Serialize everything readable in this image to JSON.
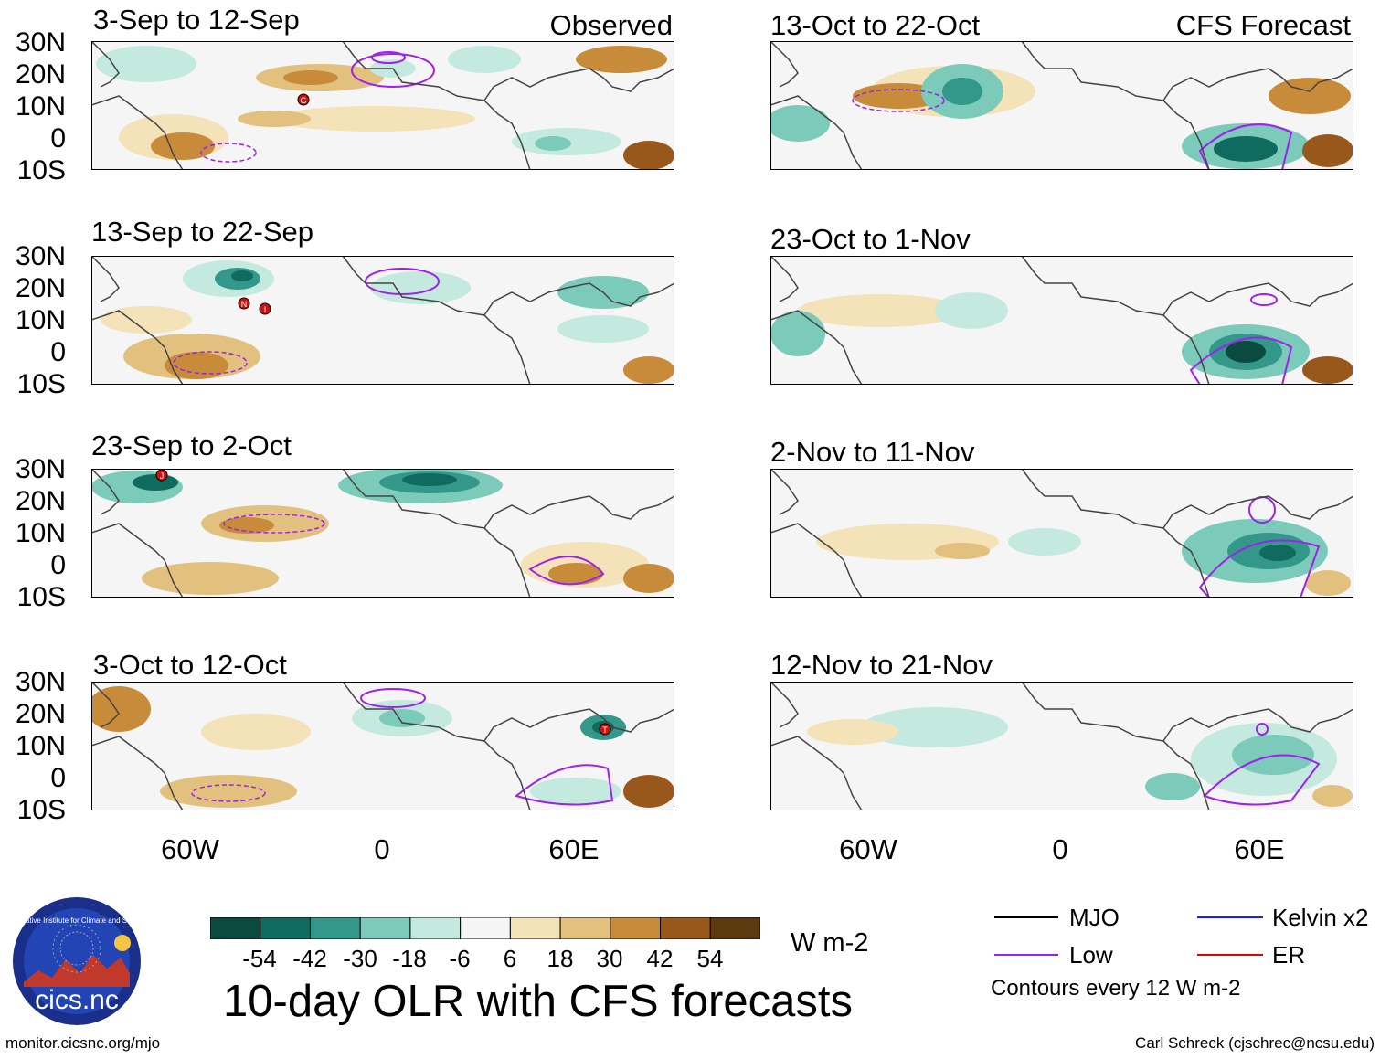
{
  "panels": [
    {
      "title": "3-Sep to 12-Sep",
      "subtitle": "Observed"
    },
    {
      "title": "13-Sep to 22-Sep",
      "subtitle": ""
    },
    {
      "title": "23-Sep to 2-Oct",
      "subtitle": ""
    },
    {
      "title": "3-Oct to 12-Oct",
      "subtitle": ""
    },
    {
      "title": "13-Oct to 22-Oct",
      "subtitle": "CFS Forecast"
    },
    {
      "title": "23-Oct to 1-Nov",
      "subtitle": ""
    },
    {
      "title": "2-Nov to 11-Nov",
      "subtitle": ""
    },
    {
      "title": "12-Nov to 21-Nov",
      "subtitle": ""
    }
  ],
  "lat_labels": [
    "30N",
    "20N",
    "10N",
    "0",
    "10S"
  ],
  "lon_labels": [
    "60W",
    "0",
    "60E"
  ],
  "storm_markers": [
    "G",
    "N",
    "I",
    "J",
    "T"
  ],
  "colorbar": {
    "colors": [
      "#0b4a3f",
      "#0f6b5d",
      "#33978a",
      "#7ccab9",
      "#c4eae0",
      "#f5f5f5",
      "#f4e3b8",
      "#e2c07d",
      "#c78b3a",
      "#99581b",
      "#5c3a0f"
    ],
    "ticks": [
      "-54",
      "-42",
      "-30",
      "-18",
      "-6",
      "6",
      "18",
      "30",
      "42",
      "54"
    ],
    "units": "W m-2"
  },
  "title": "10-day OLR with CFS forecasts",
  "legend": {
    "items": [
      {
        "label": "MJO",
        "color": "#000000"
      },
      {
        "label": "Kelvin x2",
        "color": "#1a1aff"
      },
      {
        "label": "Low",
        "color": "#a020f0"
      },
      {
        "label": "ER",
        "color": "#e00000"
      }
    ],
    "note": "Contours every 12 W m-2"
  },
  "logo_text": "cics.nc",
  "logo_ring_text": "Cooperative Institute for Climate and Satellites",
  "footer": {
    "left": "monitor.cicsnc.org/mjo",
    "right": "Carl Schreck (cjschrec@ncsu.edu)"
  }
}
